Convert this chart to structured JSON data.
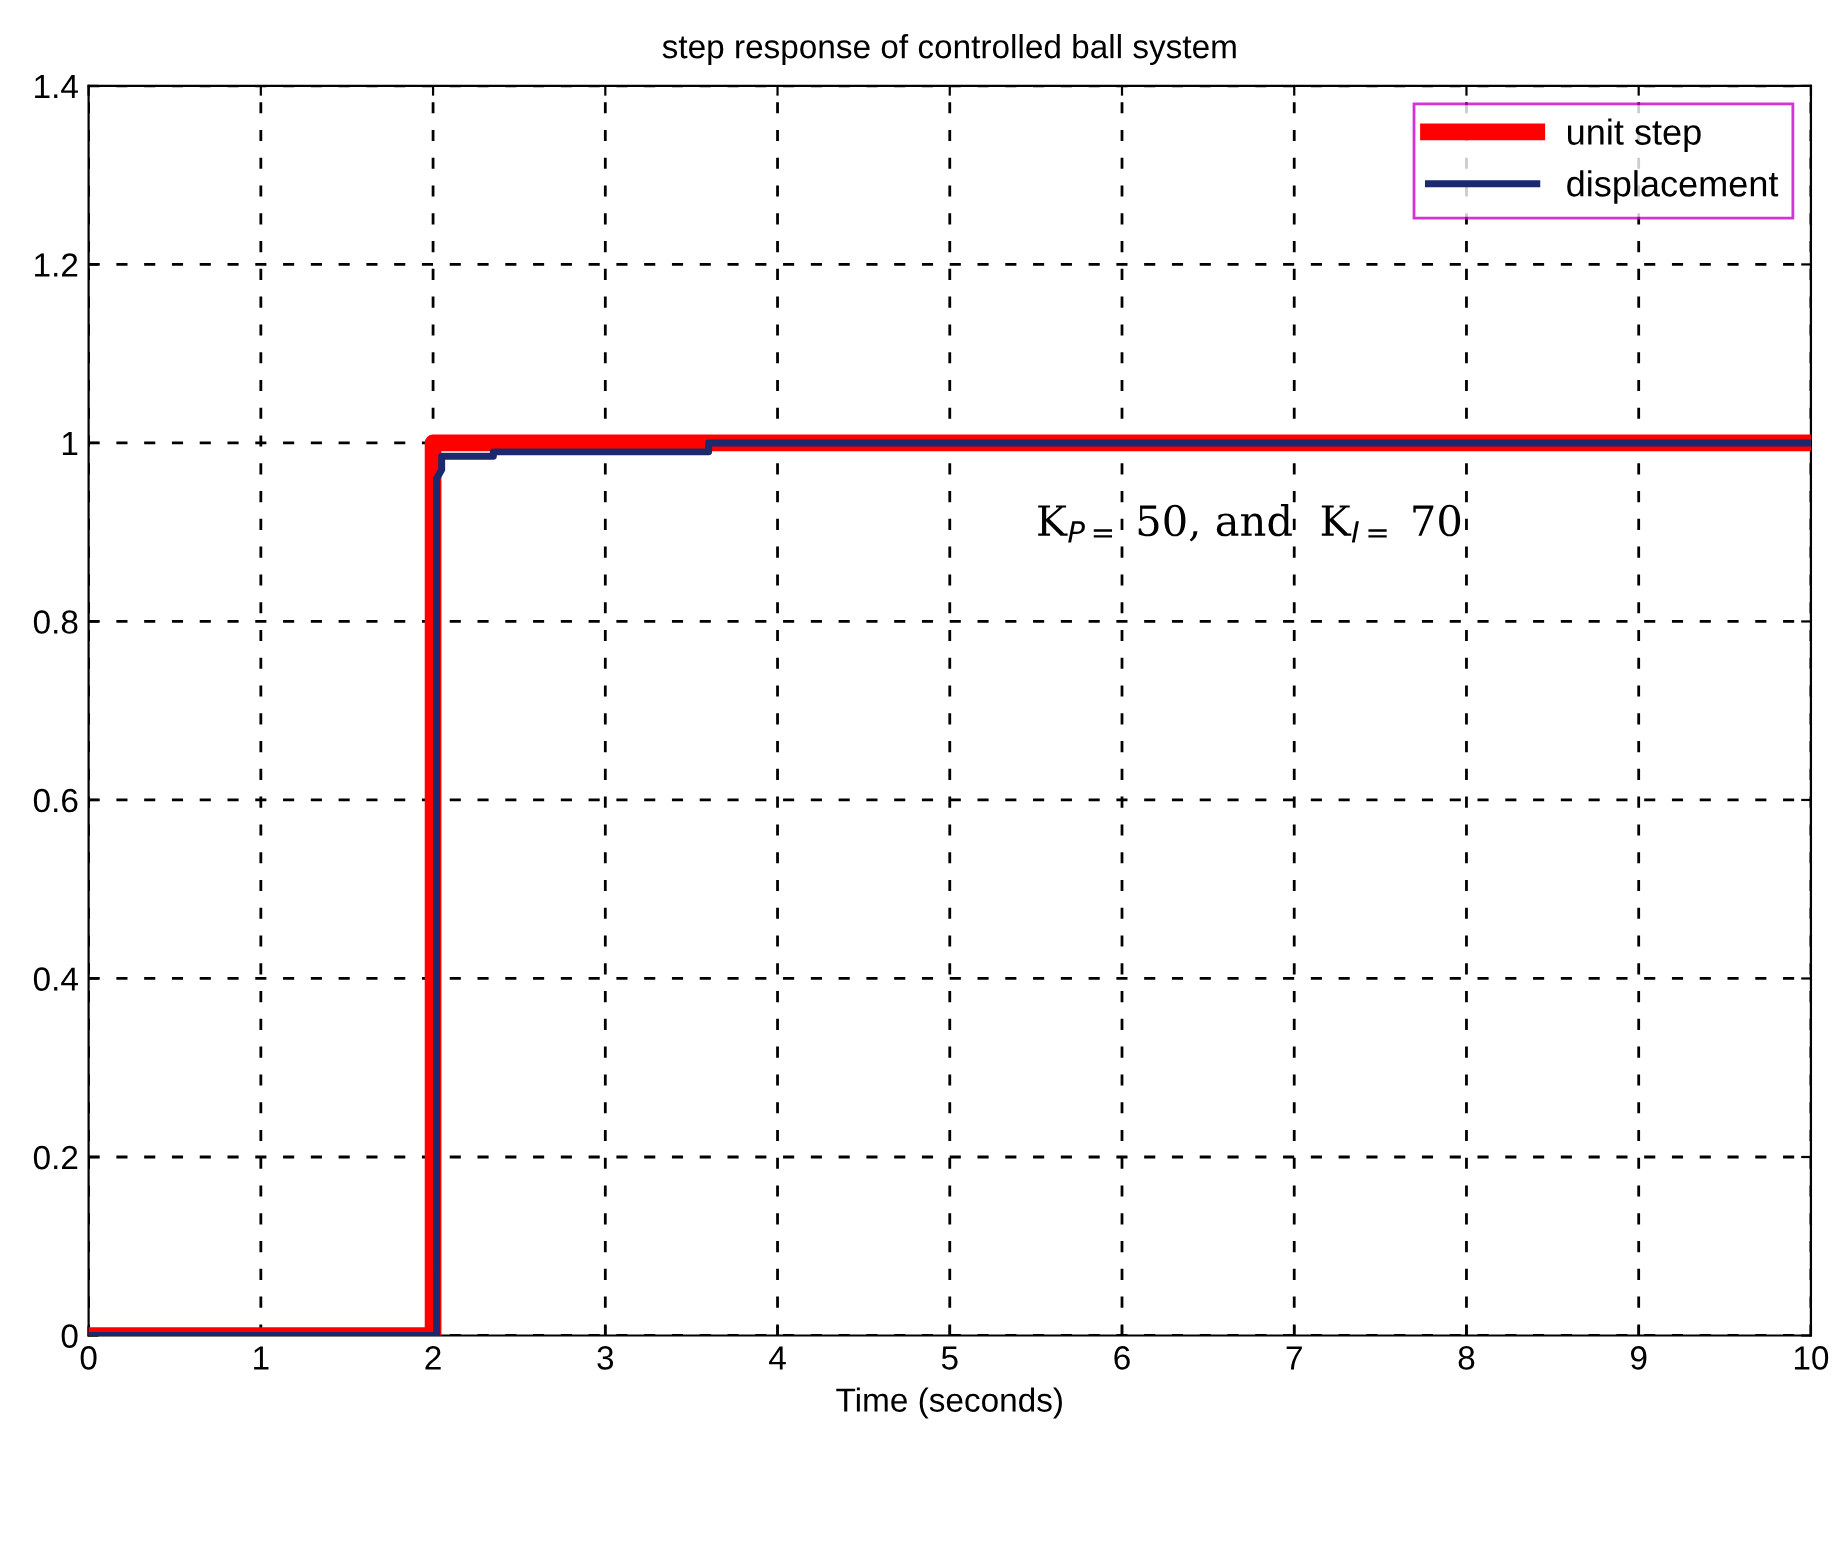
{
  "chart_data": {
    "type": "step",
    "title": "step response of controlled ball system",
    "xlabel": "Time (seconds)",
    "series": [
      {
        "name": "unit step",
        "color": "#ff0000",
        "x": [
          0,
          2,
          2,
          10
        ],
        "values": [
          0,
          0,
          1,
          1
        ]
      },
      {
        "name": "displacement",
        "color": "#1a2a6c",
        "x": [
          0,
          2.02,
          2.02,
          2.05,
          2.05,
          2.35,
          2.35,
          3.6,
          3.6,
          10
        ],
        "values": [
          0,
          0,
          0.96,
          0.97,
          0.985,
          0.985,
          0.99,
          0.99,
          1.0,
          1.0
        ]
      }
    ],
    "xlim": [
      0,
      10
    ],
    "xticks": [
      0,
      1,
      2,
      3,
      4,
      5,
      6,
      7,
      8,
      9,
      10
    ],
    "ylim": [
      0,
      1.4
    ],
    "yticks": [
      0,
      0.2,
      0.4,
      0.6,
      0.8,
      1,
      1.2,
      1.4
    ],
    "grid": true,
    "legend": "top right",
    "line_style": "solid",
    "marker": "none",
    "annotations": [
      "K$_{P=}$ 50, and  K$_{I=}$ 70"
    ]
  }
}
